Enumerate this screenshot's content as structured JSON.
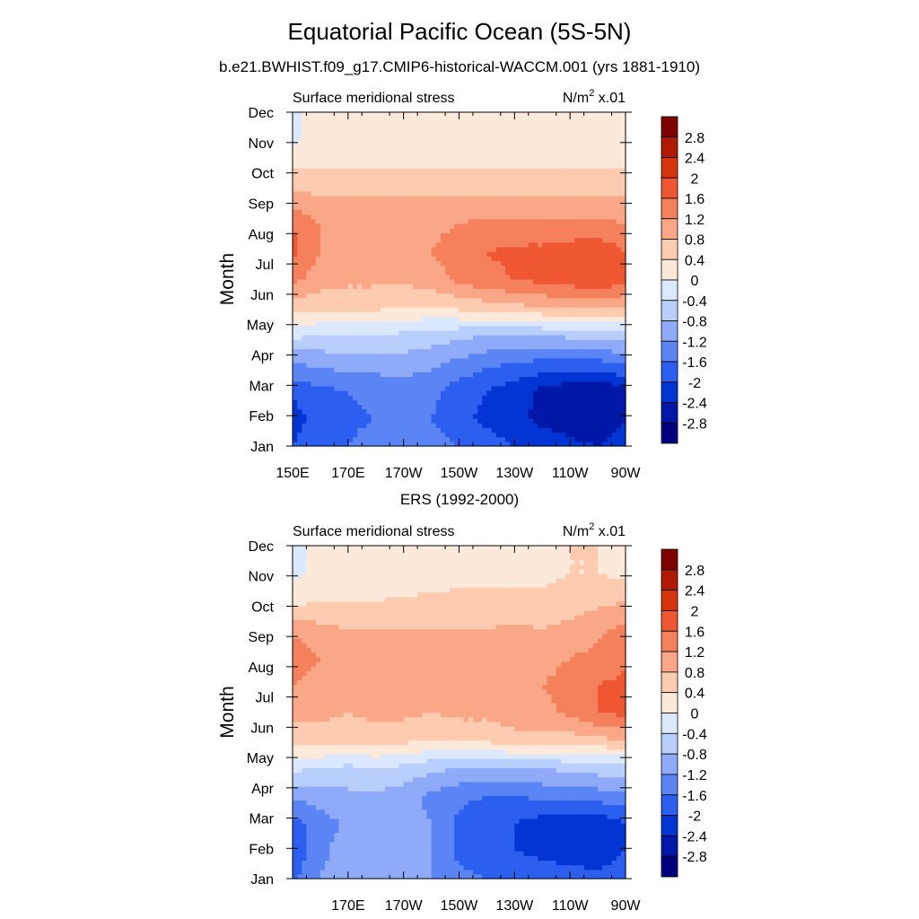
{
  "title": "Equatorial Pacific Ocean (5S-5N)",
  "subtitle": "b.e21.BWHIST.f09_g17.CMIP6-historical-WACCM.001 (yrs 1881-1910)",
  "chart_data": [
    {
      "type": "heatmap",
      "panel_title": "",
      "left_label": "Surface meridional stress",
      "units_prefix": "N/m",
      "units_sup": "2",
      "units_suffix": " x.01",
      "ylabel": "Month",
      "xlabel": "",
      "x_ticks": [
        "150E",
        "170E",
        "170W",
        "150W",
        "130W",
        "110W",
        "90W"
      ],
      "y_ticks": [
        "Jan",
        "Feb",
        "Mar",
        "Apr",
        "May",
        "Jun",
        "Jul",
        "Aug",
        "Sep",
        "Oct",
        "Nov",
        "Dec"
      ],
      "x": [
        150,
        160,
        170,
        180,
        190,
        200,
        210,
        220,
        230,
        240,
        250,
        260,
        270
      ],
      "y": [
        "Jan",
        "Feb",
        "Mar",
        "Apr",
        "May",
        "Jun",
        "Jul",
        "Aug",
        "Sep",
        "Oct",
        "Nov",
        "Dec",
        "Dec"
      ],
      "z": [
        [
          -2.0,
          -1.6,
          -1.6,
          -1.4,
          -1.3,
          -1.4,
          -1.6,
          -1.8,
          -2.0,
          -2.2,
          -2.3,
          -2.4,
          -2.2
        ],
        [
          -2.2,
          -1.8,
          -1.7,
          -1.6,
          -1.5,
          -1.6,
          -1.9,
          -2.1,
          -2.3,
          -2.5,
          -2.6,
          -2.7,
          -2.4
        ],
        [
          -1.9,
          -1.7,
          -1.6,
          -1.5,
          -1.4,
          -1.5,
          -1.8,
          -2.0,
          -2.2,
          -2.5,
          -2.7,
          -2.8,
          -2.5
        ],
        [
          -1.2,
          -1.1,
          -1.0,
          -1.0,
          -1.0,
          -1.1,
          -1.3,
          -1.5,
          -1.6,
          -1.7,
          -1.7,
          -1.7,
          -1.5
        ],
        [
          -0.3,
          -0.4,
          -0.4,
          -0.4,
          -0.5,
          -0.6,
          -0.7,
          -0.8,
          -0.8,
          -0.8,
          -0.7,
          -0.7,
          -0.6
        ],
        [
          0.6,
          0.5,
          0.5,
          0.5,
          0.4,
          0.4,
          0.5,
          0.6,
          0.7,
          0.8,
          0.9,
          0.9,
          0.8
        ],
        [
          1.3,
          1.0,
          0.9,
          0.9,
          0.9,
          1.0,
          1.3,
          1.5,
          1.6,
          1.7,
          1.8,
          2.0,
          1.7
        ],
        [
          1.7,
          1.2,
          1.1,
          1.1,
          1.1,
          1.2,
          1.4,
          1.6,
          1.7,
          1.7,
          1.8,
          1.9,
          1.6
        ],
        [
          1.6,
          1.2,
          1.1,
          1.1,
          1.0,
          1.1,
          1.2,
          1.3,
          1.3,
          1.3,
          1.3,
          1.3,
          1.2
        ],
        [
          0.9,
          0.8,
          0.8,
          0.8,
          0.8,
          0.8,
          0.8,
          0.8,
          0.8,
          0.8,
          0.8,
          0.8,
          0.8
        ],
        [
          0.4,
          0.4,
          0.4,
          0.4,
          0.4,
          0.4,
          0.4,
          0.4,
          0.4,
          0.4,
          0.4,
          0.4,
          0.4
        ],
        [
          -0.1,
          0.2,
          0.3,
          0.3,
          0.3,
          0.3,
          0.3,
          0.3,
          0.3,
          0.3,
          0.3,
          0.2,
          0.1
        ],
        [
          -0.1,
          0.2,
          0.3,
          0.3,
          0.3,
          0.3,
          0.3,
          0.3,
          0.3,
          0.3,
          0.3,
          0.2,
          0.1
        ]
      ],
      "levels": [
        -2.8,
        -2.4,
        -2.0,
        -1.6,
        -1.2,
        -0.8,
        -0.4,
        0,
        0.4,
        0.8,
        1.2,
        1.6,
        2.0,
        2.4,
        2.8
      ],
      "colorbar_labels": [
        "2.8",
        "2.4",
        "2",
        "1.6",
        "1.2",
        "0.8",
        "0.4",
        "0",
        "-0.4",
        "-0.8",
        "-1.2",
        "-1.6",
        "-2",
        "-2.4",
        "-2.8"
      ],
      "colors": [
        "#00007f",
        "#0018a8",
        "#0335d4",
        "#2c5ef0",
        "#5b85f5",
        "#8eaaf8",
        "#b8cefb",
        "#dbe8fd",
        "#fde9da",
        "#fccbb0",
        "#f9a787",
        "#f5815c",
        "#ef5733",
        "#d6340d",
        "#b01a05",
        "#7f0000"
      ]
    },
    {
      "type": "heatmap",
      "panel_title": "ERS (1992-2000)",
      "left_label": "Surface meridional stress",
      "units_prefix": "N/m",
      "units_sup": "2",
      "units_suffix": " x.01",
      "ylabel": "Month",
      "xlabel": "",
      "x_ticks": [
        "",
        "170E",
        "170W",
        "150W",
        "130W",
        "110W",
        "90W"
      ],
      "y_ticks": [
        "Jan",
        "Feb",
        "Mar",
        "Apr",
        "May",
        "Jun",
        "Jul",
        "Aug",
        "Sep",
        "Oct",
        "Nov",
        "Dec"
      ],
      "x": [
        150,
        160,
        170,
        180,
        190,
        200,
        210,
        220,
        230,
        240,
        250,
        260,
        270
      ],
      "y": [
        "Jan",
        "Feb",
        "Mar",
        "Apr",
        "May",
        "Jun",
        "Jul",
        "Aug",
        "Sep",
        "Oct",
        "Nov",
        "Dec",
        "Dec"
      ],
      "z": [
        [
          -1.7,
          -1.2,
          -0.9,
          -1.0,
          -1.0,
          -1.2,
          -1.5,
          -1.6,
          -1.7,
          -1.8,
          -1.8,
          -1.9,
          -1.8
        ],
        [
          -1.9,
          -1.3,
          -1.0,
          -1.0,
          -1.1,
          -1.2,
          -1.7,
          -1.8,
          -2.0,
          -2.1,
          -2.2,
          -2.2,
          -2.0
        ],
        [
          -1.8,
          -1.4,
          -1.1,
          -1.1,
          -1.1,
          -1.2,
          -1.7,
          -1.9,
          -2.0,
          -2.2,
          -2.3,
          -2.3,
          -2.0
        ],
        [
          -1.1,
          -1.0,
          -0.9,
          -0.9,
          -1.0,
          -1.3,
          -1.5,
          -1.6,
          -1.6,
          -1.5,
          -1.4,
          -1.4,
          -1.3
        ],
        [
          -0.3,
          -0.4,
          -0.5,
          -0.4,
          -0.5,
          -0.7,
          -0.8,
          -0.8,
          -0.8,
          -0.8,
          -0.7,
          -0.6,
          -0.6
        ],
        [
          0.5,
          0.6,
          0.5,
          0.6,
          0.5,
          0.4,
          0.5,
          0.5,
          0.6,
          0.6,
          0.6,
          0.7,
          0.8
        ],
        [
          1.0,
          0.9,
          0.8,
          0.9,
          0.9,
          0.8,
          0.9,
          0.9,
          1.1,
          1.1,
          1.3,
          1.6,
          1.7
        ],
        [
          1.2,
          1.0,
          0.9,
          1.0,
          1.1,
          1.0,
          1.1,
          1.1,
          1.2,
          1.2,
          1.3,
          1.6,
          1.7
        ],
        [
          1.5,
          1.2,
          1.0,
          1.1,
          1.1,
          1.0,
          1.0,
          1.1,
          1.2,
          1.1,
          1.2,
          1.3,
          1.5
        ],
        [
          1.1,
          0.9,
          0.8,
          0.8,
          0.8,
          0.8,
          0.8,
          0.8,
          0.9,
          0.8,
          0.9,
          1.1,
          1.3
        ],
        [
          0.3,
          0.4,
          0.4,
          0.4,
          0.5,
          0.5,
          0.5,
          0.5,
          0.5,
          0.5,
          0.6,
          0.7,
          0.8
        ],
        [
          -0.1,
          0.1,
          0.2,
          0.1,
          0.0,
          0.2,
          0.3,
          0.3,
          0.3,
          0.3,
          0.4,
          0.4,
          0.3
        ],
        [
          -0.1,
          0.1,
          0.2,
          0.1,
          0.0,
          0.2,
          0.3,
          0.3,
          0.3,
          0.3,
          0.4,
          0.4,
          0.3
        ]
      ],
      "levels": [
        -2.8,
        -2.4,
        -2.0,
        -1.6,
        -1.2,
        -0.8,
        -0.4,
        0,
        0.4,
        0.8,
        1.2,
        1.6,
        2.0,
        2.4,
        2.8
      ],
      "colorbar_labels": [
        "2.8",
        "2.4",
        "2",
        "1.6",
        "1.2",
        "0.8",
        "0.4",
        "0",
        "-0.4",
        "-0.8",
        "-1.2",
        "-1.6",
        "-2",
        "-2.4",
        "-2.8"
      ],
      "colors": [
        "#00007f",
        "#0018a8",
        "#0335d4",
        "#2c5ef0",
        "#5b85f5",
        "#8eaaf8",
        "#b8cefb",
        "#dbe8fd",
        "#fde9da",
        "#fccbb0",
        "#f9a787",
        "#f5815c",
        "#ef5733",
        "#d6340d",
        "#b01a05",
        "#7f0000"
      ]
    }
  ]
}
